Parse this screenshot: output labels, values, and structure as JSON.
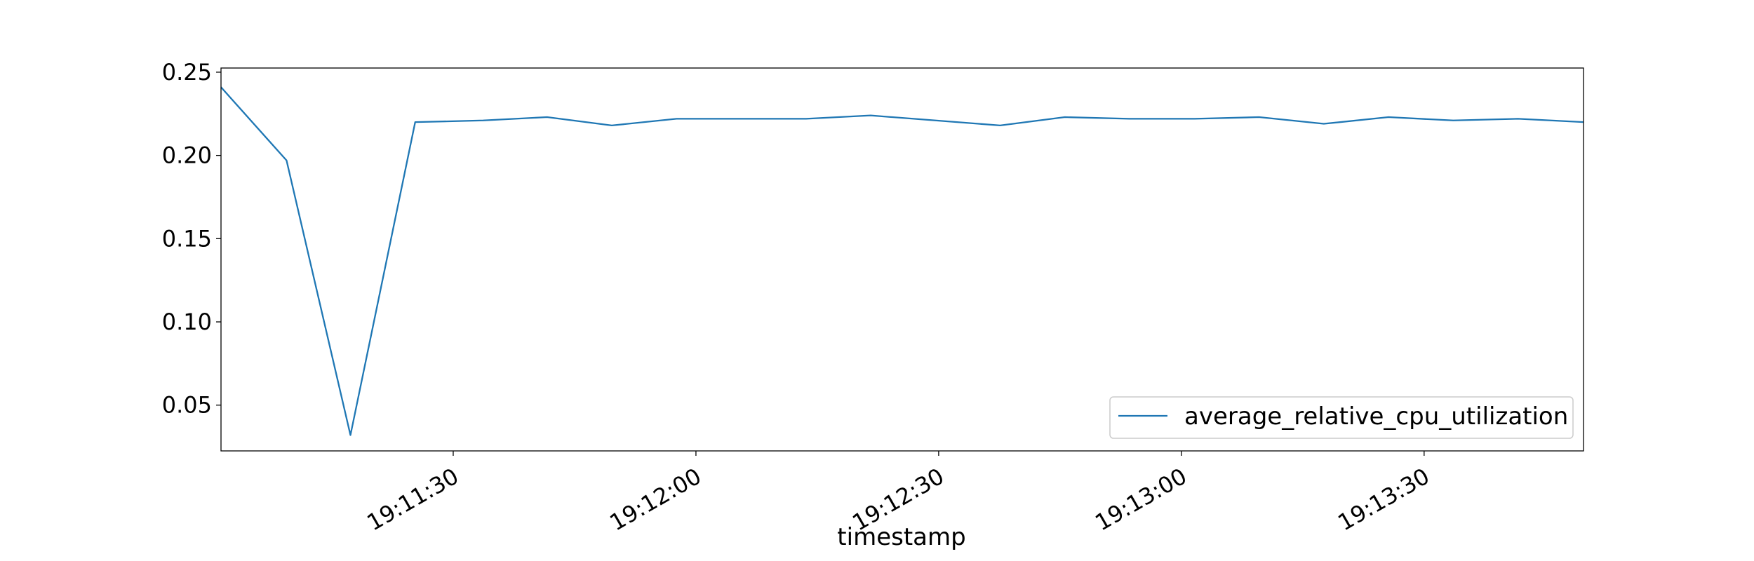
{
  "chart_data": {
    "type": "line",
    "title": "",
    "xlabel": "timestamp",
    "ylabel": "",
    "xlim": [
      "19:11:01.3",
      "19:13:49.7"
    ],
    "ylim": [
      0.0225,
      0.2525
    ],
    "x_ticks": [
      "19:11:30",
      "19:12:00",
      "19:12:30",
      "19:13:00",
      "19:13:30"
    ],
    "y_ticks": [
      0.05,
      0.1,
      0.15,
      0.2,
      0.25
    ],
    "y_tick_labels": [
      "0.05",
      "0.10",
      "0.15",
      "0.20",
      "0.25"
    ],
    "grid": false,
    "legend_position": "lower-right",
    "series": [
      {
        "name": "average_relative_cpu_utilization",
        "color": "#1f77b4",
        "x": [
          "19:11:01.3",
          "19:11:09.4",
          "19:11:17.3",
          "19:11:25.3",
          "19:11:33.7",
          "19:11:41.6",
          "19:11:49.6",
          "19:11:57.6",
          "19:12:05.6",
          "19:12:13.6",
          "19:12:21.6",
          "19:12:29.6",
          "19:12:37.6",
          "19:12:45.6",
          "19:12:53.6",
          "19:13:01.6",
          "19:13:09.6",
          "19:13:17.6",
          "19:13:25.6",
          "19:13:33.6",
          "19:13:41.6",
          "19:13:49.7"
        ],
        "values": [
          0.241,
          0.197,
          0.032,
          0.22,
          0.221,
          0.223,
          0.218,
          0.222,
          0.222,
          0.222,
          0.224,
          0.221,
          0.218,
          0.223,
          0.222,
          0.222,
          0.223,
          0.219,
          0.223,
          0.221,
          0.222,
          0.22
        ]
      }
    ]
  }
}
